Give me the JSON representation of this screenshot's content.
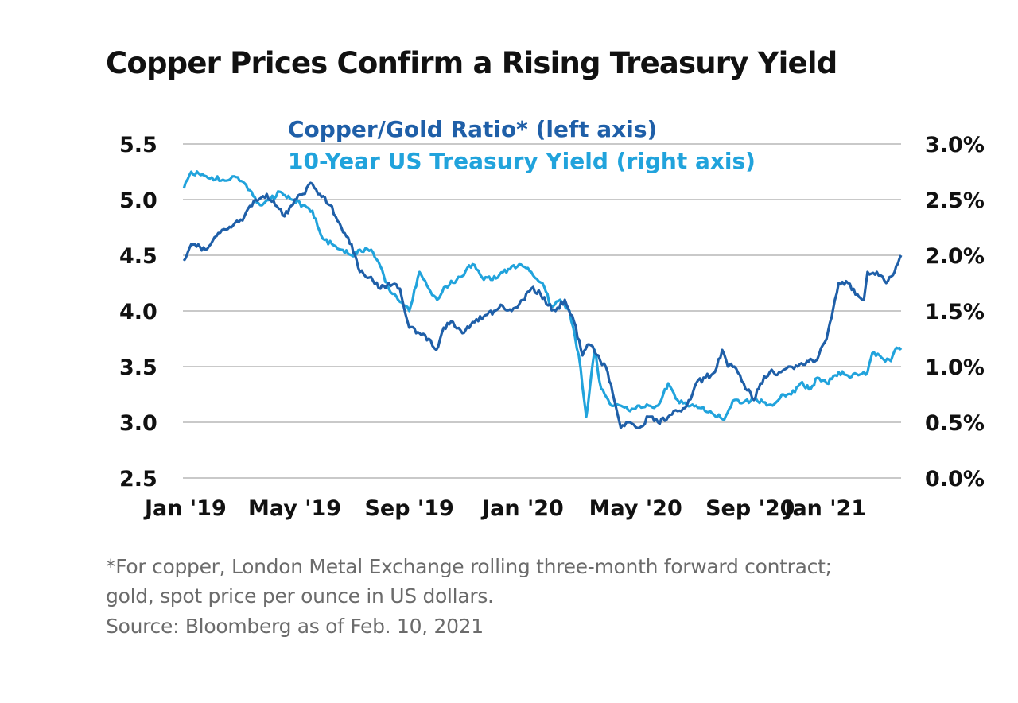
{
  "chart_data": {
    "type": "line",
    "title": "Copper Prices Confirm a Rising Treasury Yield",
    "x_range": [
      "2019-01",
      "2021-02"
    ],
    "x_ticks": [
      {
        "label": "Jan '19",
        "value": "2019-01"
      },
      {
        "label": "May '19",
        "value": "2019-05"
      },
      {
        "label": "Sep '19",
        "value": "2019-09"
      },
      {
        "label": "Jan '20",
        "value": "2020-01"
      },
      {
        "label": "May '20",
        "value": "2020-05"
      },
      {
        "label": "Sep '20",
        "value": "2020-09"
      },
      {
        "label": "Jan '21",
        "value": "2021-01"
      }
    ],
    "y_left": {
      "range": [
        2.5,
        5.5
      ],
      "ticks": [
        "5.5",
        "5.0",
        "4.5",
        "4.0",
        "3.5",
        "3.0",
        "2.5"
      ]
    },
    "y_right": {
      "range": [
        0.0,
        3.0
      ],
      "ticks": [
        "3.0%",
        "2.5%",
        "2.0%",
        "1.5%",
        "1.0%",
        "0.5%",
        "0.0%"
      ]
    },
    "grid": "horizontal",
    "legend_position": "top-center",
    "series": [
      {
        "name": "Copper/Gold Ratio* (left axis)",
        "axis": "left",
        "color": "#1f5fa8",
        "points": [
          [
            "2019-01-02",
            4.45
          ],
          [
            "2019-01-10",
            4.6
          ],
          [
            "2019-01-25",
            4.55
          ],
          [
            "2019-02-08",
            4.7
          ],
          [
            "2019-02-22",
            4.75
          ],
          [
            "2019-03-08",
            4.85
          ],
          [
            "2019-03-20",
            5.0
          ],
          [
            "2019-04-01",
            5.05
          ],
          [
            "2019-04-10",
            4.95
          ],
          [
            "2019-04-20",
            4.85
          ],
          [
            "2019-05-01",
            5.0
          ],
          [
            "2019-05-10",
            5.05
          ],
          [
            "2019-05-18",
            5.15
          ],
          [
            "2019-05-28",
            5.05
          ],
          [
            "2019-06-08",
            4.95
          ],
          [
            "2019-06-20",
            4.75
          ],
          [
            "2019-07-01",
            4.6
          ],
          [
            "2019-07-10",
            4.35
          ],
          [
            "2019-07-20",
            4.3
          ],
          [
            "2019-08-01",
            4.2
          ],
          [
            "2019-08-10",
            4.25
          ],
          [
            "2019-08-22",
            4.2
          ],
          [
            "2019-09-01",
            3.85
          ],
          [
            "2019-09-12",
            3.8
          ],
          [
            "2019-09-22",
            3.75
          ],
          [
            "2019-09-30",
            3.65
          ],
          [
            "2019-10-08",
            3.85
          ],
          [
            "2019-10-18",
            3.9
          ],
          [
            "2019-10-28",
            3.8
          ],
          [
            "2019-11-08",
            3.9
          ],
          [
            "2019-11-20",
            3.95
          ],
          [
            "2019-12-01",
            4.0
          ],
          [
            "2019-12-10",
            4.05
          ],
          [
            "2019-12-20",
            4.0
          ],
          [
            "2020-01-01",
            4.1
          ],
          [
            "2020-01-10",
            4.2
          ],
          [
            "2020-01-20",
            4.15
          ],
          [
            "2020-01-28",
            4.05
          ],
          [
            "2020-02-05",
            4.0
          ],
          [
            "2020-02-15",
            4.1
          ],
          [
            "2020-02-25",
            3.9
          ],
          [
            "2020-03-05",
            3.6
          ],
          [
            "2020-03-12",
            3.7
          ],
          [
            "2020-03-22",
            3.6
          ],
          [
            "2020-04-01",
            3.45
          ],
          [
            "2020-04-08",
            3.2
          ],
          [
            "2020-04-15",
            2.95
          ],
          [
            "2020-04-25",
            3.0
          ],
          [
            "2020-05-05",
            2.95
          ],
          [
            "2020-05-15",
            3.05
          ],
          [
            "2020-05-25",
            3.0
          ],
          [
            "2020-06-05",
            3.05
          ],
          [
            "2020-06-15",
            3.1
          ],
          [
            "2020-06-25",
            3.15
          ],
          [
            "2020-07-05",
            3.35
          ],
          [
            "2020-07-15",
            3.4
          ],
          [
            "2020-07-25",
            3.45
          ],
          [
            "2020-08-02",
            3.65
          ],
          [
            "2020-08-08",
            3.5
          ],
          [
            "2020-08-15",
            3.5
          ],
          [
            "2020-08-25",
            3.35
          ],
          [
            "2020-09-05",
            3.2
          ],
          [
            "2020-09-12",
            3.35
          ],
          [
            "2020-09-22",
            3.45
          ],
          [
            "2020-10-02",
            3.45
          ],
          [
            "2020-10-12",
            3.5
          ],
          [
            "2020-10-22",
            3.5
          ],
          [
            "2020-11-01",
            3.55
          ],
          [
            "2020-11-10",
            3.55
          ],
          [
            "2020-11-22",
            3.75
          ],
          [
            "2020-12-01",
            4.1
          ],
          [
            "2020-12-05",
            4.25
          ],
          [
            "2020-12-15",
            4.25
          ],
          [
            "2020-12-25",
            4.15
          ],
          [
            "2021-01-01",
            4.1
          ],
          [
            "2021-01-05",
            4.35
          ],
          [
            "2021-01-15",
            4.35
          ],
          [
            "2021-01-25",
            4.25
          ],
          [
            "2021-02-03",
            4.35
          ],
          [
            "2021-02-10",
            4.5
          ]
        ]
      },
      {
        "name": "10-Year US Treasury Yield (right axis)",
        "axis": "right",
        "color": "#21a3dc",
        "points": [
          [
            "2019-01-02",
            2.6
          ],
          [
            "2019-01-10",
            2.75
          ],
          [
            "2019-01-20",
            2.72
          ],
          [
            "2019-02-01",
            2.7
          ],
          [
            "2019-02-15",
            2.67
          ],
          [
            "2019-03-01",
            2.7
          ],
          [
            "2019-03-10",
            2.63
          ],
          [
            "2019-03-25",
            2.45
          ],
          [
            "2019-04-05",
            2.5
          ],
          [
            "2019-04-15",
            2.57
          ],
          [
            "2019-04-28",
            2.5
          ],
          [
            "2019-05-10",
            2.45
          ],
          [
            "2019-05-20",
            2.4
          ],
          [
            "2019-05-31",
            2.15
          ],
          [
            "2019-06-10",
            2.1
          ],
          [
            "2019-06-20",
            2.05
          ],
          [
            "2019-07-01",
            2.0
          ],
          [
            "2019-07-10",
            2.05
          ],
          [
            "2019-07-22",
            2.05
          ],
          [
            "2019-08-01",
            1.9
          ],
          [
            "2019-08-10",
            1.7
          ],
          [
            "2019-08-20",
            1.6
          ],
          [
            "2019-09-01",
            1.5
          ],
          [
            "2019-09-12",
            1.85
          ],
          [
            "2019-09-22",
            1.7
          ],
          [
            "2019-10-01",
            1.6
          ],
          [
            "2019-10-10",
            1.72
          ],
          [
            "2019-10-22",
            1.78
          ],
          [
            "2019-11-08",
            1.92
          ],
          [
            "2019-11-20",
            1.78
          ],
          [
            "2019-12-05",
            1.8
          ],
          [
            "2019-12-20",
            1.9
          ],
          [
            "2020-01-01",
            1.9
          ],
          [
            "2020-01-10",
            1.85
          ],
          [
            "2020-01-22",
            1.75
          ],
          [
            "2020-01-31",
            1.55
          ],
          [
            "2020-02-10",
            1.6
          ],
          [
            "2020-02-20",
            1.5
          ],
          [
            "2020-03-01",
            1.1
          ],
          [
            "2020-03-09",
            0.55
          ],
          [
            "2020-03-18",
            1.15
          ],
          [
            "2020-03-25",
            0.8
          ],
          [
            "2020-04-05",
            0.65
          ],
          [
            "2020-04-15",
            0.65
          ],
          [
            "2020-04-25",
            0.6
          ],
          [
            "2020-05-05",
            0.65
          ],
          [
            "2020-05-15",
            0.65
          ],
          [
            "2020-05-25",
            0.65
          ],
          [
            "2020-06-05",
            0.85
          ],
          [
            "2020-06-15",
            0.7
          ],
          [
            "2020-06-25",
            0.65
          ],
          [
            "2020-07-05",
            0.65
          ],
          [
            "2020-07-20",
            0.6
          ],
          [
            "2020-08-04",
            0.52
          ],
          [
            "2020-08-15",
            0.7
          ],
          [
            "2020-08-25",
            0.68
          ],
          [
            "2020-09-05",
            0.7
          ],
          [
            "2020-09-15",
            0.68
          ],
          [
            "2020-09-25",
            0.65
          ],
          [
            "2020-10-05",
            0.75
          ],
          [
            "2020-10-15",
            0.75
          ],
          [
            "2020-10-25",
            0.85
          ],
          [
            "2020-11-05",
            0.8
          ],
          [
            "2020-11-12",
            0.9
          ],
          [
            "2020-11-22",
            0.85
          ],
          [
            "2020-12-05",
            0.95
          ],
          [
            "2020-12-15",
            0.92
          ],
          [
            "2020-12-28",
            0.93
          ],
          [
            "2021-01-05",
            0.95
          ],
          [
            "2021-01-10",
            1.12
          ],
          [
            "2021-01-20",
            1.08
          ],
          [
            "2021-01-30",
            1.05
          ],
          [
            "2021-02-05",
            1.17
          ],
          [
            "2021-02-10",
            1.15
          ]
        ]
      }
    ]
  },
  "footnotes": [
    "*For copper, London Metal Exchange rolling three-month forward contract;",
    "gold, spot price per ounce in US dollars.",
    "Source: Bloomberg as of Feb. 10, 2021"
  ]
}
